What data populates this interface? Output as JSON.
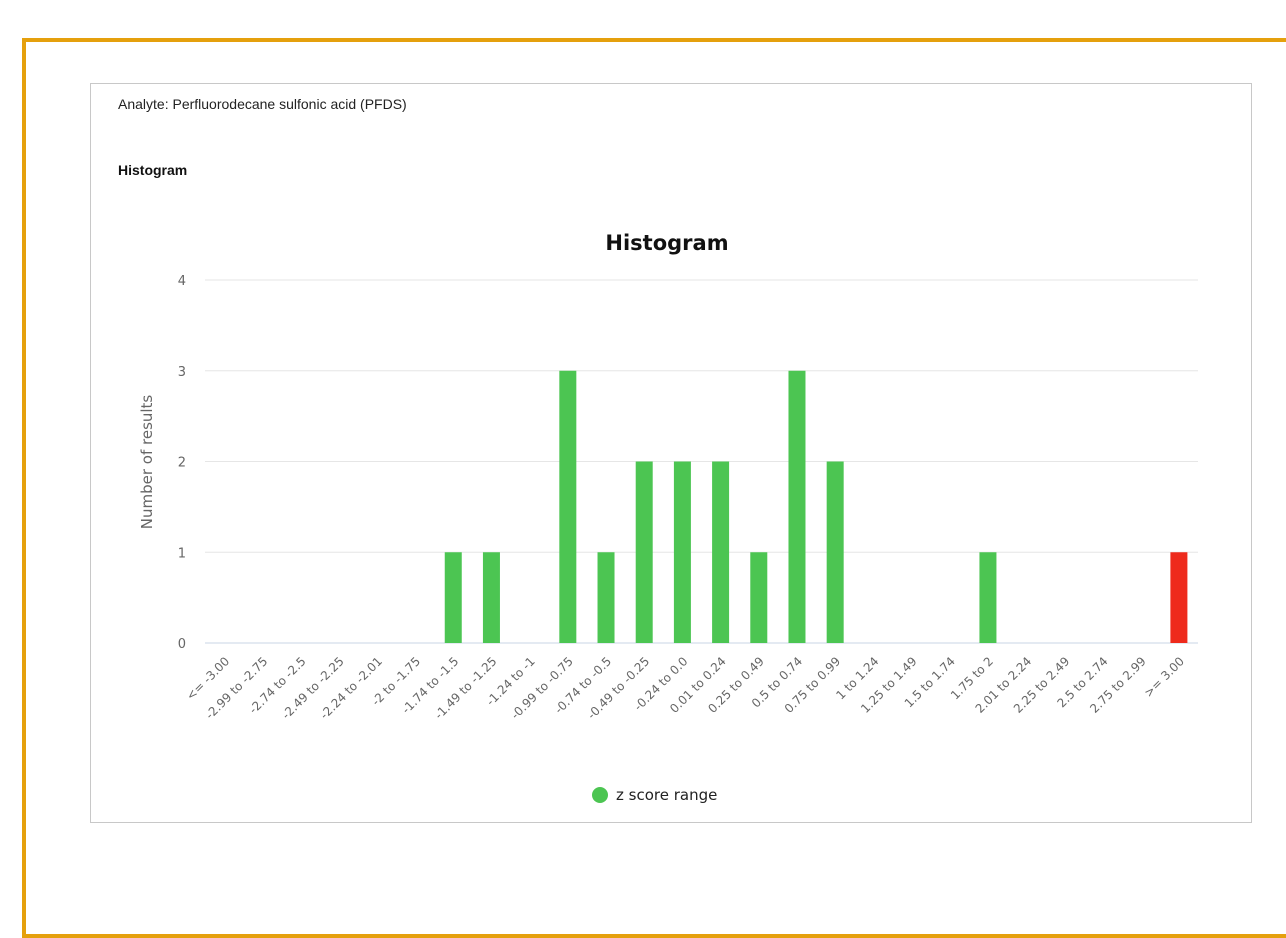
{
  "analyte": "Analyte: Perfluorodecane sulfonic acid (PFDS)",
  "section_title": "Histogram",
  "chart_data": {
    "type": "bar",
    "title": "Histogram",
    "y_label": "Number of results",
    "categories": [
      "<= -3.00",
      "-2.99 to -2.75",
      "-2.74 to -2.5",
      "-2.49 to -2.25",
      "-2.24 to -2.01",
      "-2 to -1.75",
      "-1.74 to -1.5",
      "-1.49 to -1.25",
      "-1.24 to -1",
      "-0.99 to -0.75",
      "-0.74 to -0.5",
      "-0.49 to -0.25",
      "-0.24 to 0.0",
      "0.01 to 0.24",
      "0.25 to 0.49",
      "0.5 to 0.74",
      "0.75 to 0.99",
      "1 to 1.24",
      "1.25 to 1.49",
      "1.5 to 1.74",
      "1.75 to 2",
      "2.01 to 2.24",
      "2.25 to 2.49",
      "2.5 to 2.74",
      "2.75 to 2.99",
      ">= 3.00"
    ],
    "series": [
      {
        "name": "z score range",
        "color": "#4cc552",
        "values": [
          0,
          0,
          0,
          0,
          0,
          0,
          1,
          1,
          0,
          3,
          1,
          2,
          2,
          2,
          1,
          3,
          2,
          0,
          0,
          0,
          1,
          0,
          0,
          0,
          0,
          1
        ],
        "colors": [
          "#4cc552",
          "#4cc552",
          "#4cc552",
          "#4cc552",
          "#4cc552",
          "#4cc552",
          "#4cc552",
          "#4cc552",
          "#4cc552",
          "#4cc552",
          "#4cc552",
          "#4cc552",
          "#4cc552",
          "#4cc552",
          "#4cc552",
          "#4cc552",
          "#4cc552",
          "#4cc552",
          "#4cc552",
          "#4cc552",
          "#4cc552",
          "#4cc552",
          "#4cc552",
          "#4cc552",
          "#4cc552",
          "#ee2a1c"
        ]
      }
    ],
    "ylim": [
      0,
      4
    ],
    "yticks": [
      0,
      1,
      2,
      3,
      4
    ],
    "grid": true,
    "legend": "bottom"
  }
}
